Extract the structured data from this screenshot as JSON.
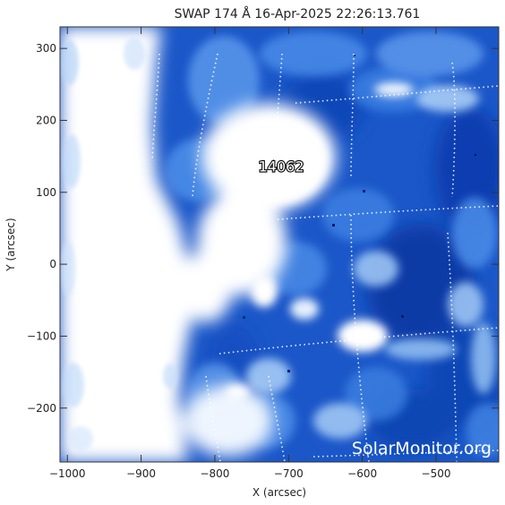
{
  "figure": {
    "title": "SWAP 174 Å 16-Apr-2025 22:26:13.761",
    "xlabel": "X (arcsec)",
    "ylabel": "Y (arcsec)",
    "xlim": [
      -1010,
      -415
    ],
    "ylim": [
      -275,
      330
    ],
    "xticks": [
      -1000,
      -900,
      -800,
      -700,
      -600,
      -500
    ],
    "yticks": [
      -200,
      -100,
      0,
      100,
      200,
      300
    ],
    "active_region_label": "14062",
    "active_region_position": {
      "x": -710,
      "y": 135
    },
    "watermark": "SolarMonitor.org",
    "colormap": [
      "#0b3fae",
      "#1f63d6",
      "#4c8fe8",
      "#86b7f2",
      "#c7defa",
      "#ffffff"
    ]
  }
}
